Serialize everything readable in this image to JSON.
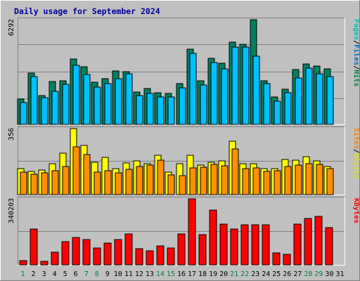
{
  "chart_data": {
    "type": "bar",
    "title": "Daily usage for September 2024",
    "categories": [
      "1",
      "2",
      "3",
      "4",
      "5",
      "6",
      "7",
      "8",
      "9",
      "10",
      "11",
      "12",
      "13",
      "14",
      "15",
      "16",
      "17",
      "18",
      "19",
      "20",
      "21",
      "22",
      "23",
      "24",
      "25",
      "26",
      "27",
      "28",
      "29",
      "30",
      "31"
    ],
    "weekend_days": [
      "1",
      "7",
      "8",
      "14",
      "15",
      "21",
      "22",
      "28",
      "29"
    ],
    "panels": [
      {
        "name": "hits-files-pages",
        "ymax_label": "6292",
        "ymax": 6292,
        "right_label_parts": [
          "Pages",
          "/",
          "Files",
          "/",
          "Hits"
        ],
        "right_label_colors": [
          "#00c0c0",
          "#000000",
          "#0070c0",
          "#000000",
          "#008040"
        ],
        "series": [
          {
            "name": "Hits",
            "color": "#008060",
            "values": [
              1520,
              3080,
              1720,
              2560,
              2600,
              3930,
              3480,
              2550,
              2740,
              3210,
              3160,
              1940,
              2140,
              1890,
              1860,
              2450,
              4520,
              2620,
              3990,
              3690,
              4950,
              4810,
              6292,
              2620,
              1650,
              2100,
              3280,
              3640,
              3520,
              3350,
              null
            ]
          },
          {
            "name": "Files",
            "color": "#00c0ff",
            "values": [
              1320,
              2870,
              1620,
              2000,
              2420,
              3560,
              3000,
              2220,
              2430,
              2760,
              3050,
              1730,
              1840,
              1630,
              1640,
              2210,
              4260,
              2350,
              3700,
              3320,
              4650,
              4660,
              4090,
              2470,
              1400,
              1880,
              2800,
              3360,
              3060,
              2880,
              null
            ]
          },
          {
            "name": "Pages",
            "color": "#00e0e0",
            "values": [
              null,
              null,
              null,
              null,
              null,
              null,
              null,
              null,
              null,
              null,
              null,
              null,
              null,
              null,
              null,
              null,
              null,
              null,
              null,
              null,
              null,
              null,
              null,
              null,
              null,
              null,
              null,
              null,
              null,
              null,
              null
            ]
          }
        ]
      },
      {
        "name": "visits-sites",
        "ymax_label": "356",
        "ymax": 356,
        "right_label_parts": [
          "Sites",
          "/",
          "Visits"
        ],
        "right_label_colors": [
          "#ff8000",
          "#000000",
          "#e0e000"
        ],
        "series": [
          {
            "name": "Visits",
            "color": "#ffff00",
            "values": [
              140,
              125,
              132,
              165,
              225,
              356,
              265,
              173,
              200,
              139,
              172,
              181,
              167,
              213,
              123,
              168,
              213,
              158,
              176,
              181,
              287,
              168,
              165,
              141,
              140,
              189,
              184,
              203,
              182,
              153,
              null
            ]
          },
          {
            "name": "Sites",
            "color": "#ff9000",
            "values": [
              122,
              110,
              116,
              127,
              153,
              256,
              217,
              122,
              130,
              119,
              135,
              151,
              159,
              184,
              107,
              101,
              145,
              147,
              162,
              157,
              246,
              142,
              145,
              124,
              128,
              151,
              159,
              166,
              161,
              139,
              null
            ]
          }
        ]
      },
      {
        "name": "kbytes",
        "ymax_label": "340203",
        "ymax": 340203,
        "right_label_parts": [
          "KBytes"
        ],
        "right_label_colors": [
          "#ff0000"
        ],
        "series": [
          {
            "name": "KBytes",
            "color": "#ff0000",
            "values": [
              22000,
              183000,
              18000,
              64000,
              120000,
              141000,
              129000,
              88000,
              111000,
              131000,
              160000,
              83000,
              72000,
              97000,
              88000,
              161000,
              340203,
              155000,
              284000,
              210000,
              184000,
              206000,
              208000,
              208000,
              62000,
              54000,
              210000,
              240000,
              250000,
              192000,
              null
            ]
          }
        ]
      }
    ]
  }
}
